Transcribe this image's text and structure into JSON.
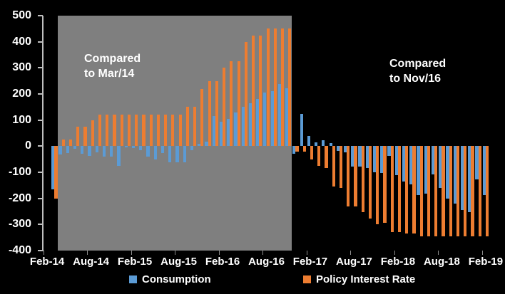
{
  "chart_data": {
    "type": "bar",
    "title": "",
    "xlabel": "",
    "ylabel": "",
    "ylim": [
      -400,
      500
    ],
    "y_tick_step": 100,
    "y_ticks": [
      "500",
      "400",
      "300",
      "200",
      "100",
      "0",
      "-100",
      "-200",
      "-300",
      "-400"
    ],
    "x_tick_labels": [
      "Feb-14",
      "Aug-14",
      "Feb-15",
      "Aug-15",
      "Feb-16",
      "Aug-16",
      "Feb-17",
      "Aug-17",
      "Feb-18",
      "Aug-18",
      "Feb-19"
    ],
    "grid": false,
    "legend_position": "bottom",
    "x": [
      "Feb-14",
      "Mar-14",
      "Apr-14",
      "May-14",
      "Jun-14",
      "Jul-14",
      "Aug-14",
      "Sep-14",
      "Oct-14",
      "Nov-14",
      "Dec-14",
      "Jan-15",
      "Feb-15",
      "Mar-15",
      "Apr-15",
      "May-15",
      "Jun-15",
      "Jul-15",
      "Aug-15",
      "Sep-15",
      "Oct-15",
      "Nov-15",
      "Dec-15",
      "Jan-16",
      "Feb-16",
      "Mar-16",
      "Apr-16",
      "May-16",
      "Jun-16",
      "Jul-16",
      "Aug-16",
      "Sep-16",
      "Oct-16",
      "Nov-16",
      "Dec-16",
      "Jan-17",
      "Feb-17",
      "Mar-17",
      "Apr-17",
      "May-17",
      "Jun-17",
      "Jul-17",
      "Aug-17",
      "Sep-17",
      "Oct-17",
      "Nov-17",
      "Dec-17",
      "Jan-18",
      "Feb-18",
      "Mar-18",
      "Apr-18",
      "May-18",
      "Jun-18",
      "Jul-18",
      "Aug-18",
      "Sep-18",
      "Oct-18",
      "Nov-18",
      "Dec-18",
      "Jan-19",
      "Feb-19"
    ],
    "series": [
      {
        "name": "Consumption",
        "color": "#5B9BD5",
        "values": [
          null,
          -165,
          -32,
          -27,
          -10,
          -30,
          -38,
          -25,
          -40,
          -40,
          -75,
          -4,
          -8,
          -16,
          -40,
          -50,
          -27,
          -62,
          -62,
          -62,
          -15,
          10,
          18,
          115,
          95,
          105,
          128,
          152,
          165,
          180,
          205,
          212,
          237,
          222,
          -28,
          125,
          38,
          15,
          22,
          13,
          -18,
          -23,
          -78,
          -78,
          -84,
          -101,
          -102,
          -38,
          -110,
          -136,
          -147,
          -188,
          -182,
          -108,
          -161,
          -202,
          -221,
          -244,
          -253,
          -128,
          -188
        ]
      },
      {
        "name": "Policy Interest Rate",
        "color": "#ED7D31",
        "values": [
          null,
          -200,
          25,
          25,
          75,
          75,
          100,
          122,
          122,
          122,
          122,
          122,
          122,
          122,
          122,
          122,
          122,
          122,
          122,
          150,
          150,
          220,
          248,
          248,
          300,
          325,
          325,
          400,
          425,
          425,
          450,
          450,
          450,
          450,
          -22,
          -20,
          -52,
          -76,
          -83,
          -155,
          -160,
          -230,
          -230,
          -253,
          -277,
          -300,
          -293,
          -330,
          -330,
          -335,
          -335,
          -345,
          -345,
          -345,
          -345,
          -345,
          -345,
          -345,
          -345,
          -345,
          -345
        ]
      }
    ],
    "shaded_region": {
      "from": "Apr-14",
      "to": "Nov-16",
      "from_index": 2,
      "to_index": 33,
      "color": "#7F7F7F"
    },
    "annotations": [
      {
        "line1": "Compared",
        "line2": "to Mar/14",
        "region": "shaded-left"
      },
      {
        "line1": "Compared",
        "line2": "to Nov/16",
        "region": "black-right"
      }
    ]
  },
  "colors": {
    "background": "#000000",
    "text": "#FFFFFF",
    "axis": "#BFBFBF",
    "boundary_tick": "#8C8C8C"
  }
}
